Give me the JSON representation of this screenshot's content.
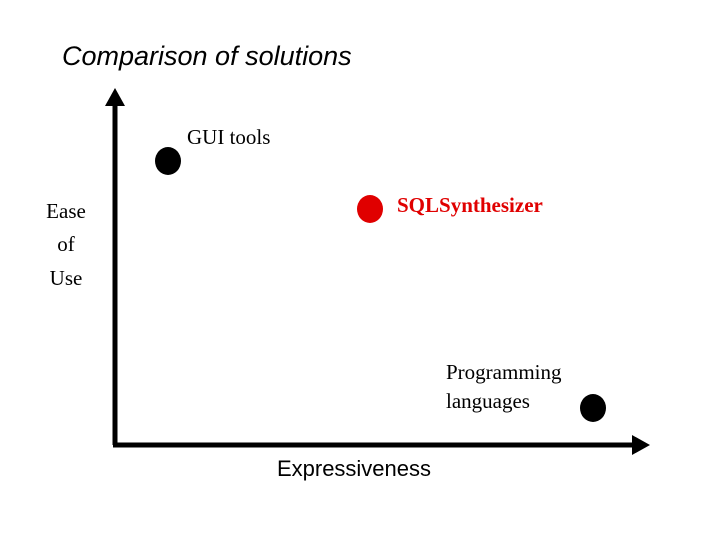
{
  "title": "Comparison of solutions",
  "y_axis": {
    "lines": [
      "Ease",
      "of",
      "Use"
    ]
  },
  "x_axis": {
    "label": "Expressiveness"
  },
  "points": [
    {
      "lines": [
        "GUI tools"
      ]
    },
    {
      "lines": [
        "SQLSynthesizer"
      ]
    },
    {
      "lines": [
        "Programming",
        "languages"
      ]
    }
  ]
}
